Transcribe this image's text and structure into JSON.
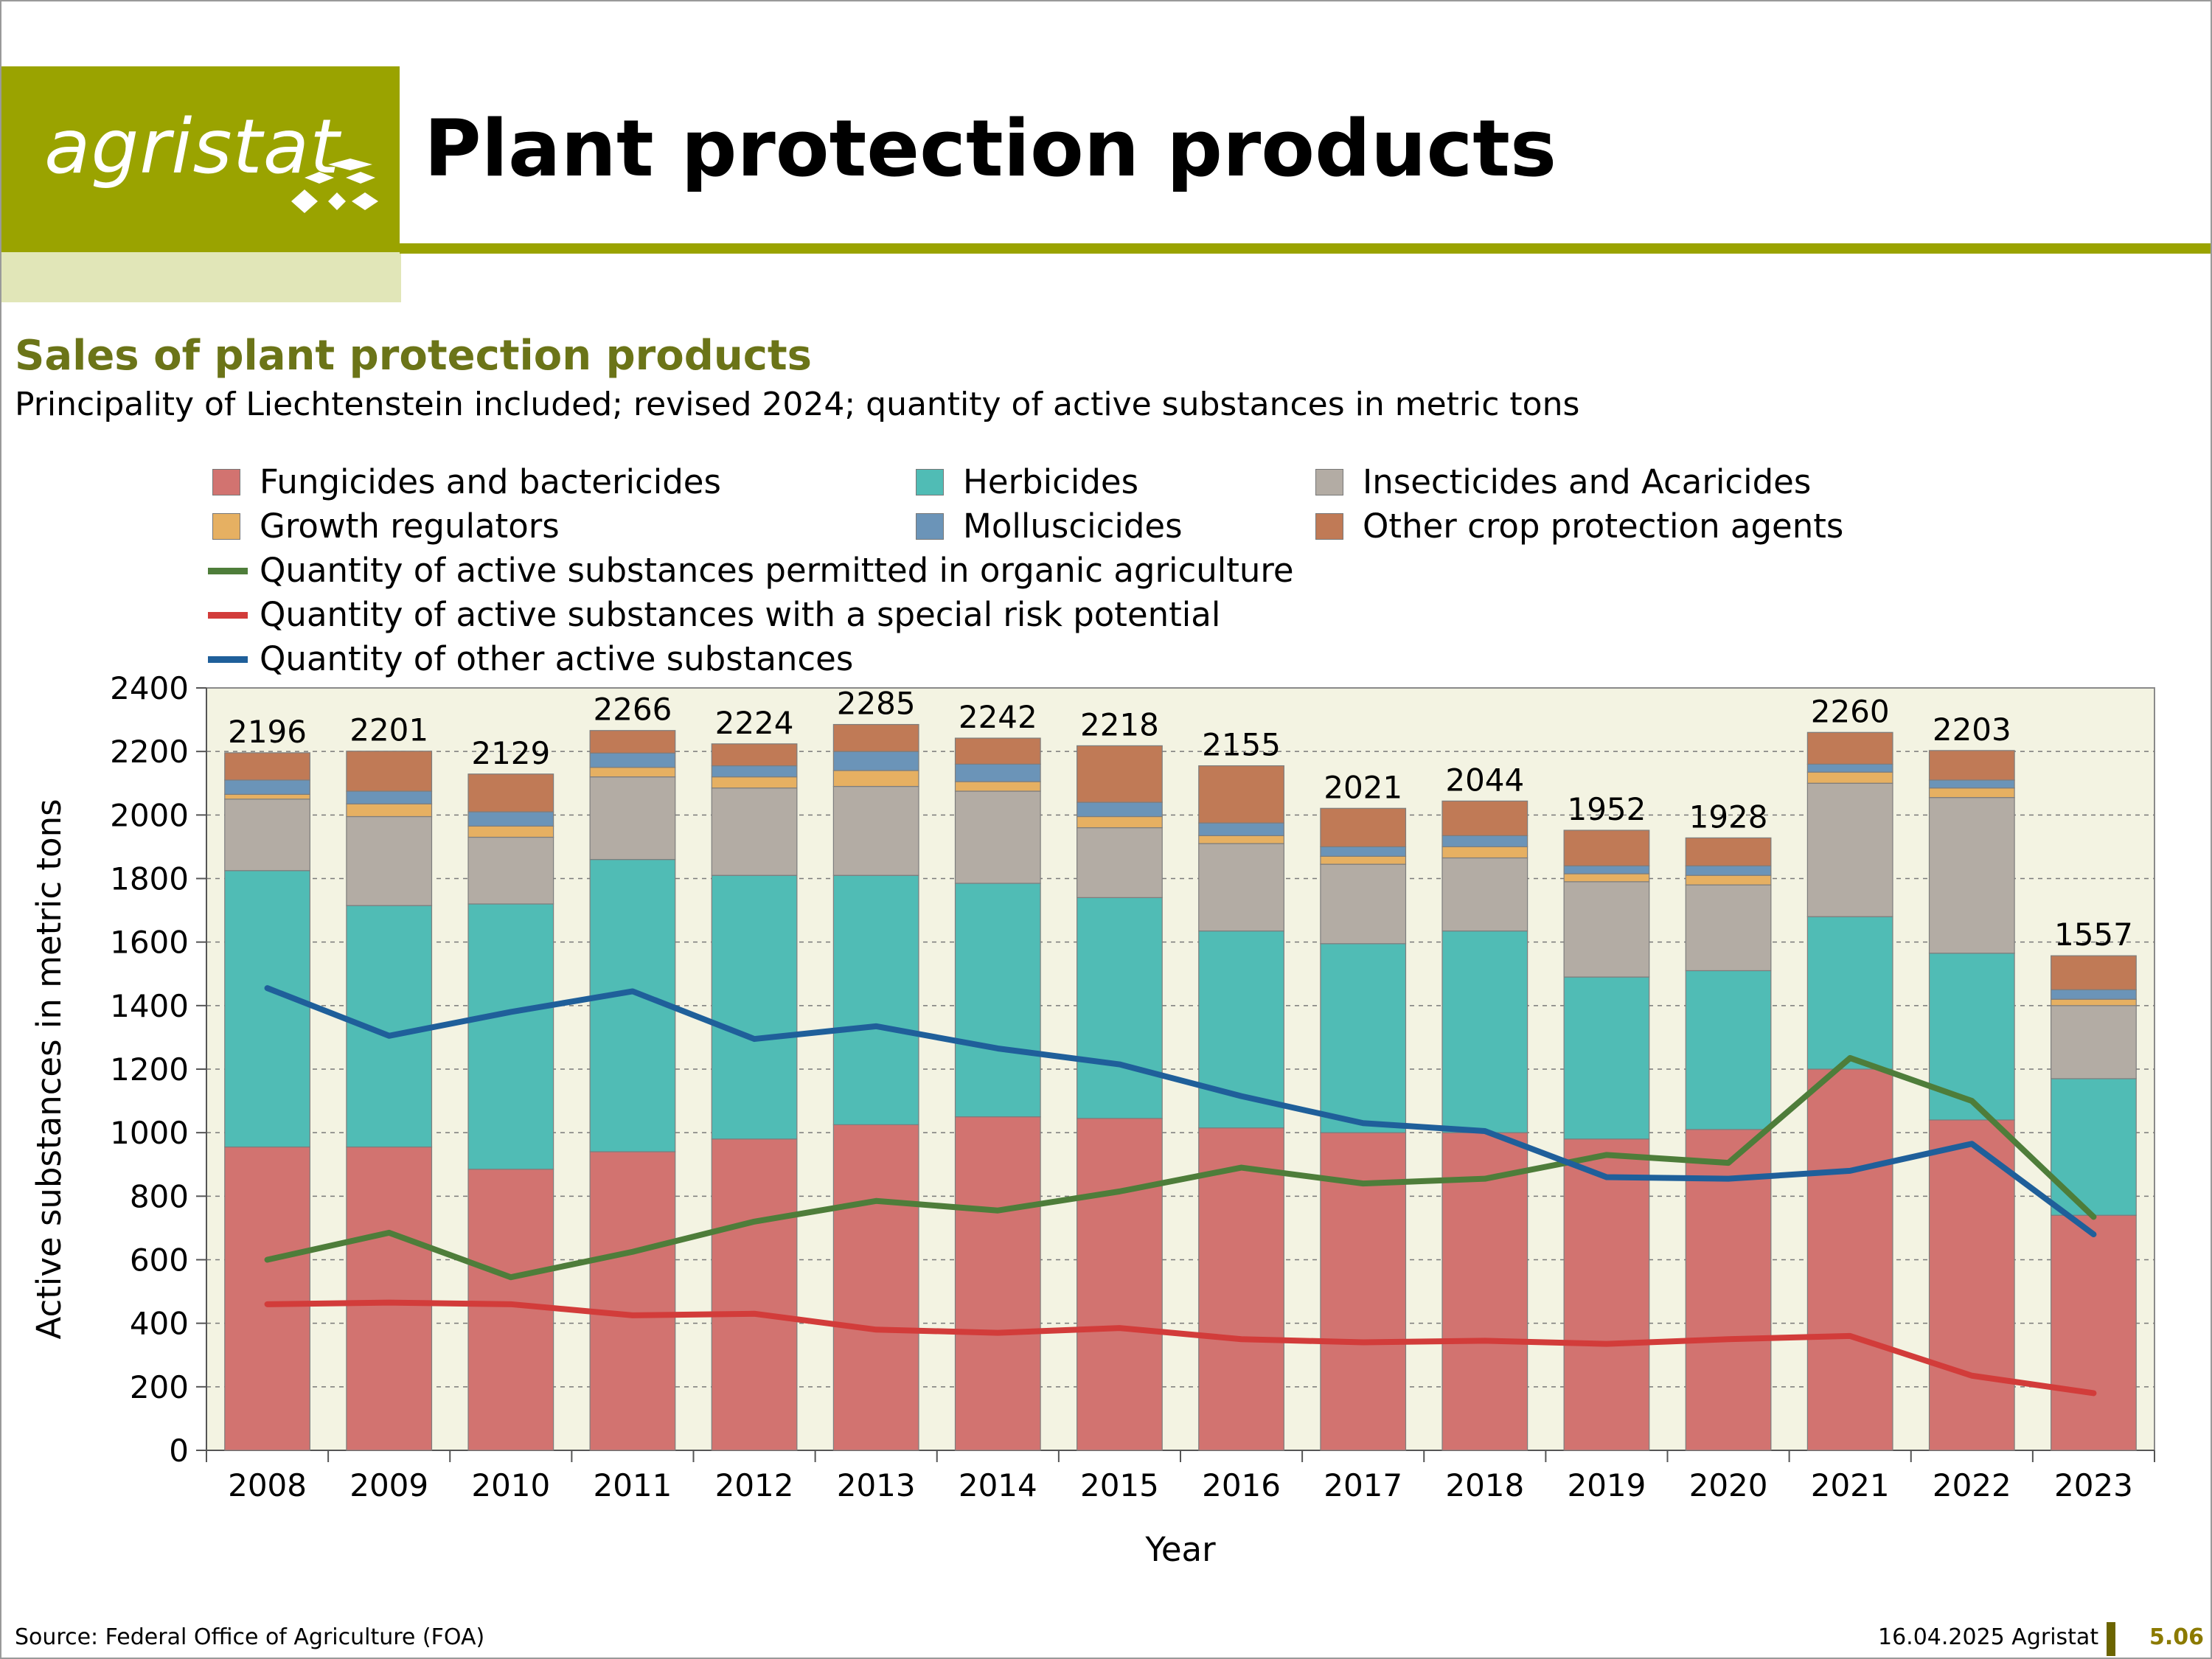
{
  "header": {
    "logo_text": "agristat",
    "page_title": "Plant protection products"
  },
  "colors": {
    "brand_olive": "#9aa300",
    "brand_light": "#e1e6b8",
    "title_green": "#6b7418",
    "plot_bg": "#f3f3e2"
  },
  "footer": {
    "source": "Source: Federal Office of Agriculture (FOA)",
    "date": "16.04.2025 Agristat",
    "page_number": "5.06"
  },
  "chart_data": {
    "type": "bar",
    "stacked": true,
    "title": "Sales of plant protection products",
    "subtitle": "Principality of Liechtenstein included; revised 2024; quantity of active substances in metric tons",
    "xlabel": "Year",
    "ylabel": "Active substances in metric tons",
    "ylim": [
      0,
      2400
    ],
    "yticks": [
      0,
      200,
      400,
      600,
      800,
      1000,
      1200,
      1400,
      1600,
      1800,
      2000,
      2200,
      2400
    ],
    "grid": true,
    "legend_position": "top",
    "categories": [
      "2008",
      "2009",
      "2010",
      "2011",
      "2012",
      "2013",
      "2014",
      "2015",
      "2016",
      "2017",
      "2018",
      "2019",
      "2020",
      "2021",
      "2022",
      "2023"
    ],
    "series": [
      {
        "name": "Fungicides and bactericides",
        "kind": "bar",
        "color": "#d27370",
        "values": [
          955,
          955,
          885,
          940,
          980,
          1025,
          1050,
          1045,
          1015,
          1000,
          1000,
          980,
          1010,
          1200,
          1040,
          740
        ]
      },
      {
        "name": "Herbicides",
        "kind": "bar",
        "color": "#50bcb5",
        "values": [
          870,
          760,
          835,
          920,
          830,
          785,
          735,
          695,
          620,
          595,
          635,
          510,
          500,
          480,
          525,
          430
        ]
      },
      {
        "name": "Insecticides and Acaricides",
        "kind": "bar",
        "color": "#b3aca4",
        "values": [
          225,
          280,
          210,
          260,
          275,
          280,
          290,
          220,
          275,
          250,
          230,
          300,
          270,
          420,
          490,
          230
        ]
      },
      {
        "name": "Growth regulators",
        "kind": "bar",
        "color": "#e6b062",
        "values": [
          15,
          40,
          35,
          30,
          35,
          50,
          30,
          35,
          25,
          25,
          35,
          25,
          30,
          35,
          30,
          20
        ]
      },
      {
        "name": "Molluscicides",
        "kind": "bar",
        "color": "#6b94b8",
        "values": [
          45,
          40,
          45,
          45,
          35,
          60,
          55,
          45,
          40,
          30,
          35,
          25,
          30,
          25,
          25,
          30
        ]
      },
      {
        "name": "Other crop protection agents",
        "kind": "bar",
        "color": "#c07a56",
        "values": [
          86,
          126,
          119,
          71,
          69,
          85,
          82,
          178,
          180,
          121,
          109,
          112,
          88,
          100,
          93,
          107
        ]
      },
      {
        "name": "Quantity of active substances permitted in organic agriculture",
        "kind": "line",
        "color": "#4e7d3a",
        "values": [
          600,
          685,
          545,
          625,
          720,
          785,
          755,
          815,
          890,
          840,
          855,
          930,
          905,
          1235,
          1100,
          735
        ]
      },
      {
        "name": "Quantity of active substances with a special risk potential",
        "kind": "line",
        "color": "#d23c3a",
        "values": [
          460,
          465,
          460,
          425,
          430,
          380,
          370,
          385,
          350,
          340,
          345,
          335,
          350,
          360,
          235,
          180
        ]
      },
      {
        "name": "Quantity of other active substances",
        "kind": "line",
        "color": "#1f5f9a",
        "values": [
          1455,
          1305,
          1380,
          1445,
          1295,
          1335,
          1265,
          1215,
          1115,
          1030,
          1005,
          860,
          855,
          880,
          965,
          680
        ]
      }
    ],
    "totals": [
      2196,
      2201,
      2129,
      2266,
      2224,
      2285,
      2242,
      2218,
      2155,
      2021,
      2044,
      1952,
      1928,
      2260,
      2203,
      1557
    ]
  }
}
